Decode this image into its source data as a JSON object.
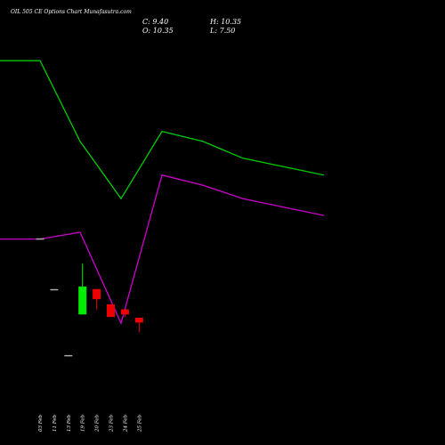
{
  "chart_data": {
    "type": "candlestick",
    "title": "OIL 505 CE Options Chart Munafasutra.com",
    "ohlc_summary": {
      "close_label": "C:",
      "close": "9.40",
      "high_label": "H:",
      "high": "10.35",
      "open_label": "O:",
      "open": "10.35",
      "low_label": "L:",
      "low": "7.50"
    },
    "categories": [
      "03 Feb",
      "11 Feb",
      "13 Feb",
      "19 Feb",
      "20 Feb",
      "23 Feb",
      "24 Feb",
      "25 Feb"
    ],
    "candles": [
      {
        "date": "03 Feb",
        "open": 26.0,
        "high": 26.0,
        "low": 26.0,
        "close": 26.0
      },
      {
        "date": "11 Feb",
        "open": 16.0,
        "high": 16.0,
        "low": 16.0,
        "close": 16.0
      },
      {
        "date": "13 Feb",
        "open": 3.0,
        "high": 3.0,
        "low": 3.0,
        "close": 3.0
      },
      {
        "date": "19 Feb",
        "open": 11.0,
        "high": 21.0,
        "low": 11.0,
        "close": 16.5
      },
      {
        "date": "20 Feb",
        "open": 16.0,
        "high": 16.0,
        "low": 12.0,
        "close": 14.0
      },
      {
        "date": "23 Feb",
        "open": 13.0,
        "high": 13.0,
        "low": 10.5,
        "close": 10.5
      },
      {
        "date": "24 Feb",
        "open": 12.0,
        "high": 12.0,
        "low": 10.5,
        "close": 11.0
      },
      {
        "date": "25 Feb",
        "open": 10.35,
        "high": 10.35,
        "low": 7.5,
        "close": 9.4
      }
    ],
    "series": [
      {
        "color": "#00cc00",
        "values": [
          101,
          101,
          77,
          60,
          80,
          77,
          72,
          67
        ]
      },
      {
        "color": "#cc00cc",
        "values": [
          48,
          48,
          50,
          23,
          67,
          64,
          60,
          55
        ]
      }
    ],
    "candle_colors": {
      "up": "#00ee00",
      "down": "#ee0000",
      "flat": "#aaaaaa"
    }
  }
}
